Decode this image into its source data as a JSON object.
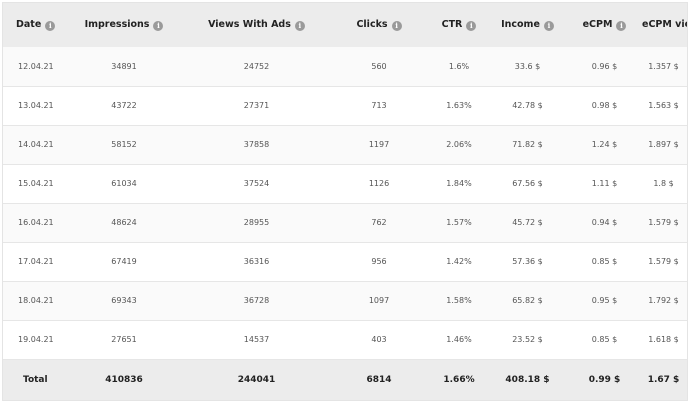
{
  "columns": [
    {
      "key": "date",
      "label": "Date"
    },
    {
      "key": "impressions",
      "label": "Impressions"
    },
    {
      "key": "views_with_ads",
      "label": "Views With Ads"
    },
    {
      "key": "clicks",
      "label": "Clicks"
    },
    {
      "key": "ctr",
      "label": "CTR"
    },
    {
      "key": "income",
      "label": "Income"
    },
    {
      "key": "ecpm",
      "label": "eCPM"
    },
    {
      "key": "ecpm_views",
      "label": "eCPM views"
    }
  ],
  "info_glyph": "i",
  "rows": [
    {
      "date": "12.04.21",
      "impressions": "34891",
      "views_with_ads": "24752",
      "clicks": "560",
      "ctr": "1.6%",
      "income": "33.6 $",
      "ecpm": "0.96 $",
      "ecpm_views": "1.357 $"
    },
    {
      "date": "13.04.21",
      "impressions": "43722",
      "views_with_ads": "27371",
      "clicks": "713",
      "ctr": "1.63%",
      "income": "42.78 $",
      "ecpm": "0.98 $",
      "ecpm_views": "1.563 $"
    },
    {
      "date": "14.04.21",
      "impressions": "58152",
      "views_with_ads": "37858",
      "clicks": "1197",
      "ctr": "2.06%",
      "income": "71.82 $",
      "ecpm": "1.24 $",
      "ecpm_views": "1.897 $"
    },
    {
      "date": "15.04.21",
      "impressions": "61034",
      "views_with_ads": "37524",
      "clicks": "1126",
      "ctr": "1.84%",
      "income": "67.56 $",
      "ecpm": "1.11 $",
      "ecpm_views": "1.8 $"
    },
    {
      "date": "16.04.21",
      "impressions": "48624",
      "views_with_ads": "28955",
      "clicks": "762",
      "ctr": "1.57%",
      "income": "45.72 $",
      "ecpm": "0.94 $",
      "ecpm_views": "1.579 $"
    },
    {
      "date": "17.04.21",
      "impressions": "67419",
      "views_with_ads": "36316",
      "clicks": "956",
      "ctr": "1.42%",
      "income": "57.36 $",
      "ecpm": "0.85 $",
      "ecpm_views": "1.579 $"
    },
    {
      "date": "18.04.21",
      "impressions": "69343",
      "views_with_ads": "36728",
      "clicks": "1097",
      "ctr": "1.58%",
      "income": "65.82 $",
      "ecpm": "0.95 $",
      "ecpm_views": "1.792 $"
    },
    {
      "date": "19.04.21",
      "impressions": "27651",
      "views_with_ads": "14537",
      "clicks": "403",
      "ctr": "1.46%",
      "income": "23.52 $",
      "ecpm": "0.85 $",
      "ecpm_views": "1.618 $"
    }
  ],
  "totals": {
    "date": "Total",
    "impressions": "410836",
    "views_with_ads": "244041",
    "clicks": "6814",
    "ctr": "1.66%",
    "income": "408.18 $",
    "ecpm": "0.99 $",
    "ecpm_views": "1.67 $"
  }
}
